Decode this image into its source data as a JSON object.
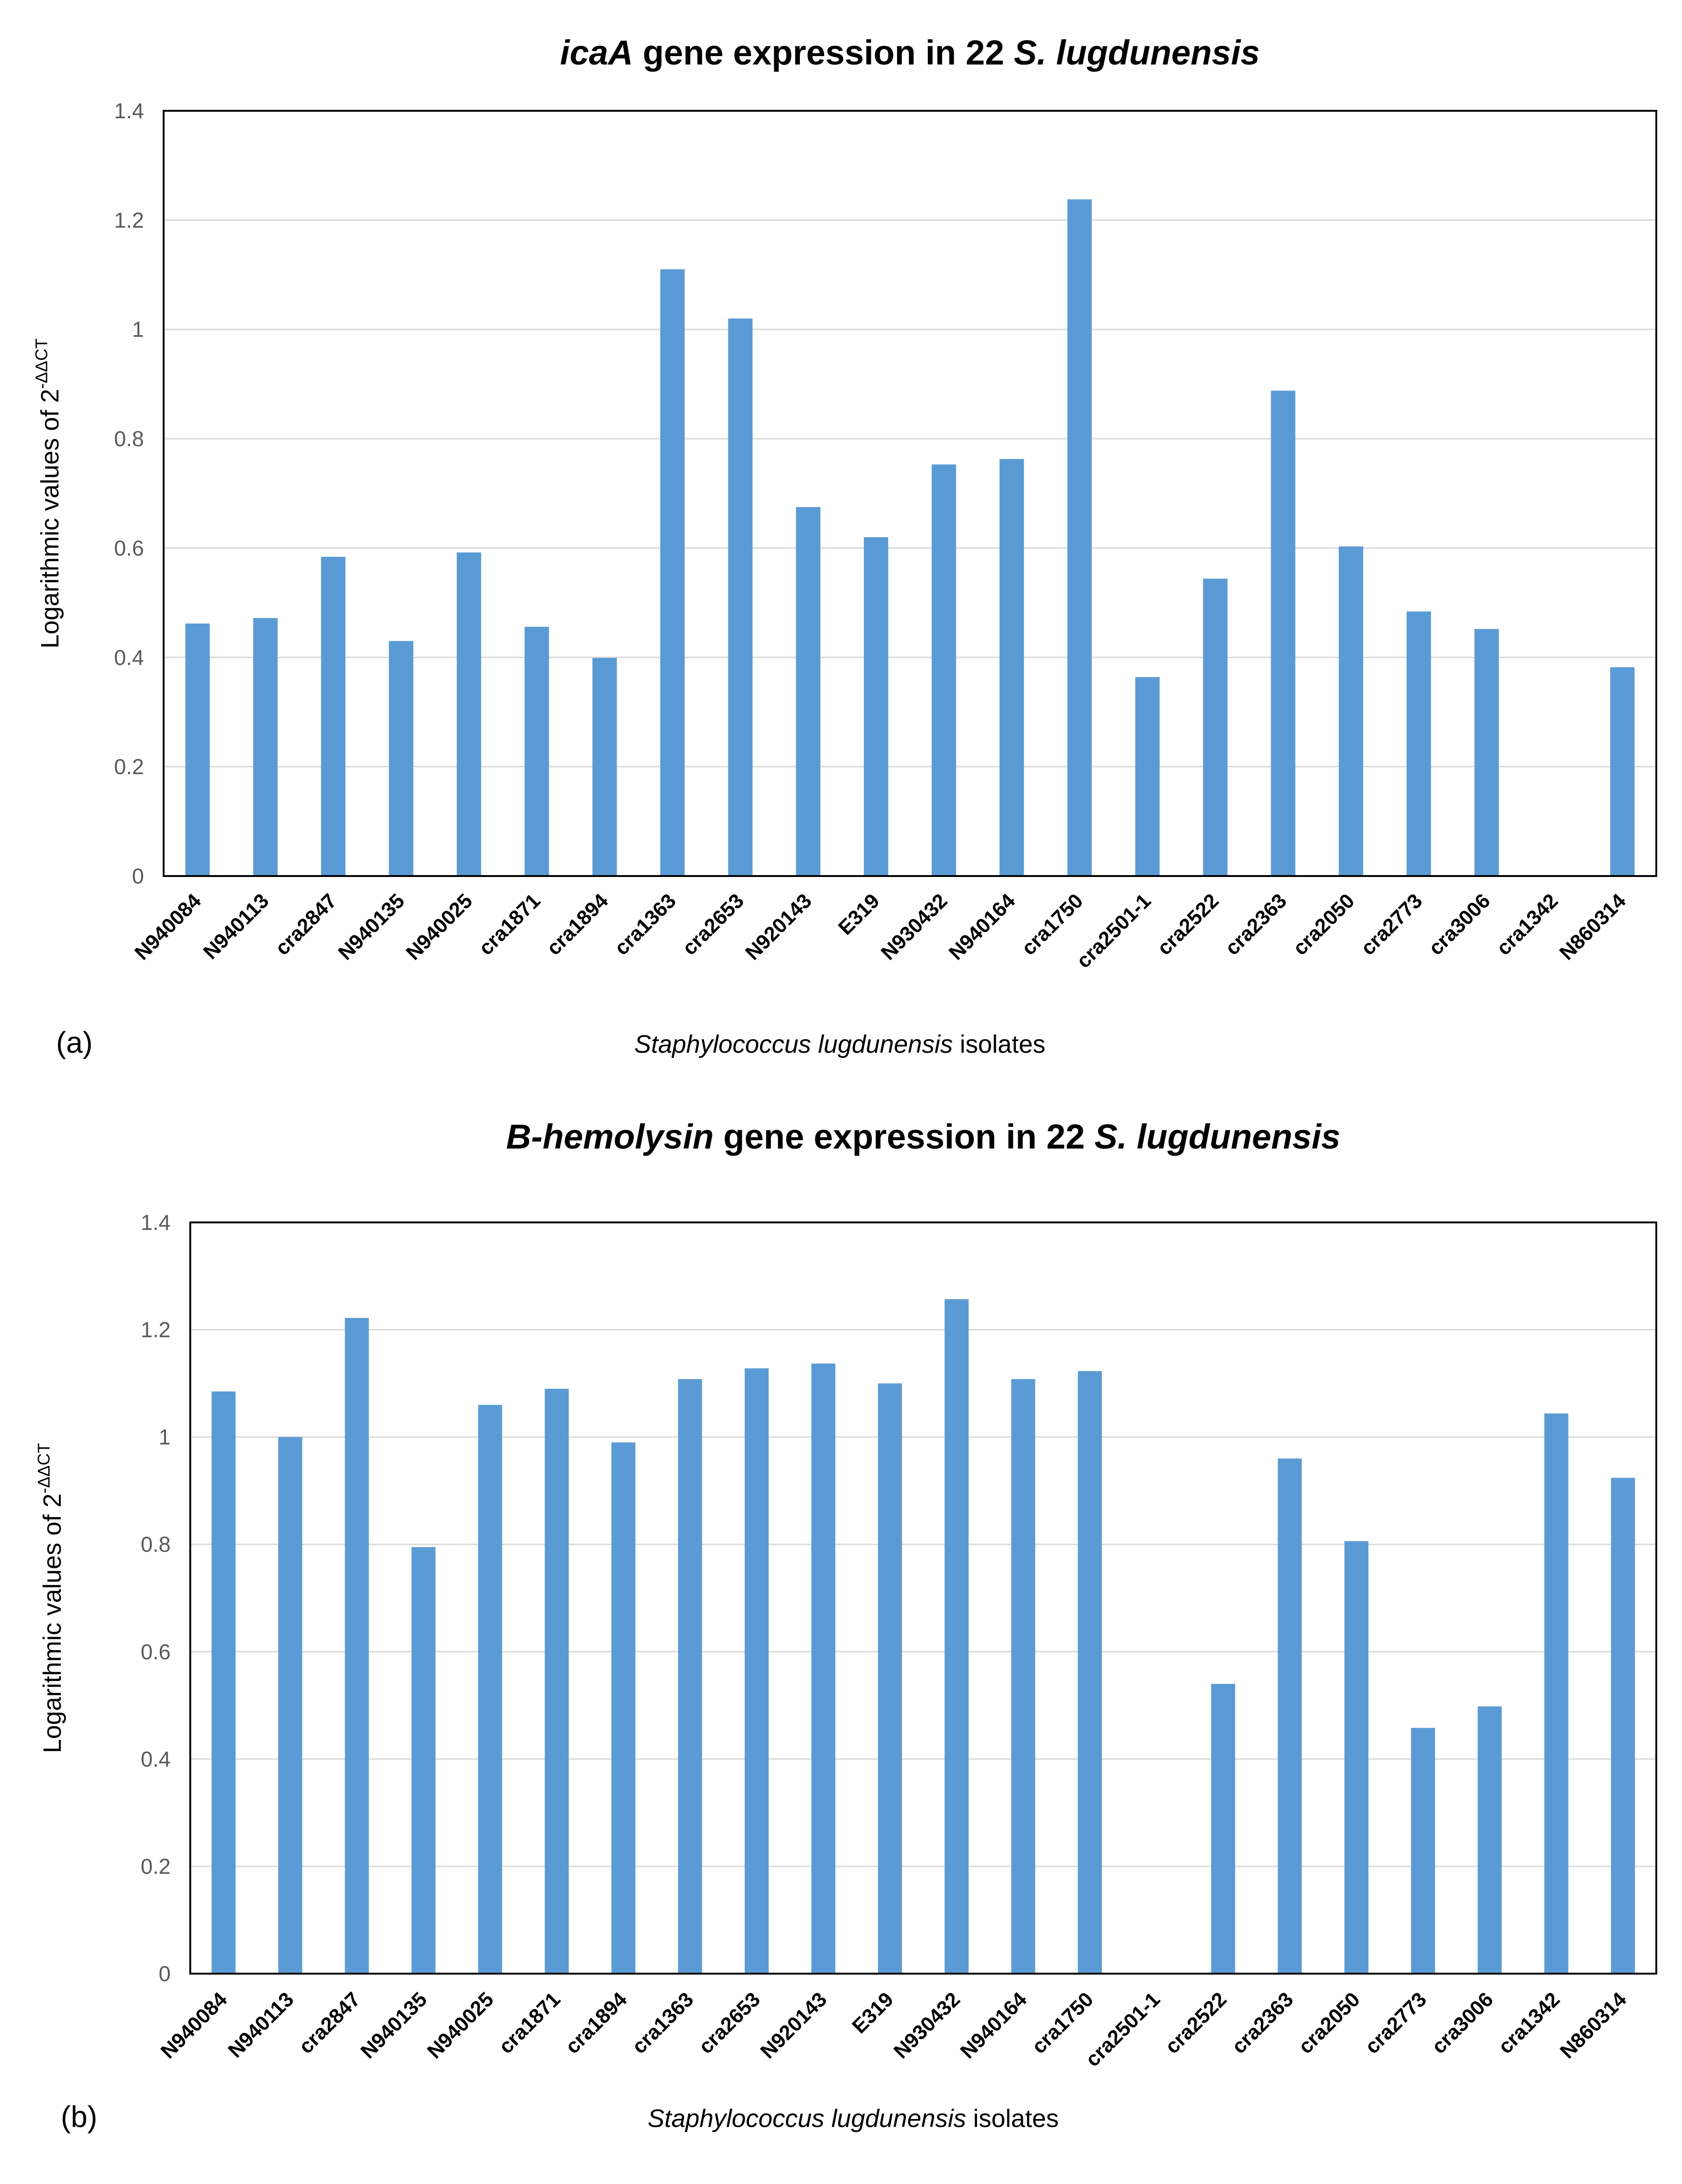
{
  "chart_data": [
    {
      "type": "bar",
      "panel_label": "(a)",
      "title_parts": [
        {
          "text": "icaA",
          "italic": true
        },
        {
          "text": " gene expression in 22 ",
          "italic": false
        },
        {
          "text": "S. lugdunensis",
          "italic": true
        }
      ],
      "xlabel_parts": [
        {
          "text": "Staphylococcus lugdunensis",
          "italic": true
        },
        {
          "text": " isolates",
          "italic": false
        }
      ],
      "ylabel": "Logarithmic values of 2",
      "ylabel_sup": "-ΔΔCT",
      "ylim": [
        0,
        1.4
      ],
      "yticks": [
        "0",
        "0.2",
        "0.4",
        "0.6",
        "0.8",
        "1",
        "1.2",
        "1.4"
      ],
      "grid": true,
      "color": "#5b9bd5",
      "categories": [
        "N940084",
        "N940113",
        "cra2847",
        "N940135",
        "N940025",
        "cra1871",
        "cra1894",
        "cra1363",
        "cra2653",
        "N920143",
        "E319",
        "N930432",
        "N940164",
        "cra1750",
        "cra2501-1",
        "cra2522",
        "cra2363",
        "cra2050",
        "cra2773",
        "cra3006",
        "cra1342",
        "N860314"
      ],
      "values": [
        0.462,
        0.472,
        0.584,
        0.43,
        0.592,
        0.456,
        0.399,
        1.11,
        1.02,
        0.675,
        0.62,
        0.753,
        0.763,
        1.238,
        0.364,
        0.544,
        0.888,
        0.603,
        0.484,
        0.452,
        0,
        0.382
      ]
    },
    {
      "type": "bar",
      "panel_label": "(b)",
      "title_parts": [
        {
          "text": "B-hemolysin",
          "italic": true
        },
        {
          "text": " gene expression in 22 ",
          "italic": false
        },
        {
          "text": "S. lugdunensis",
          "italic": true
        }
      ],
      "xlabel_parts": [
        {
          "text": "Staphylococcus lugdunensis",
          "italic": true
        },
        {
          "text": " isolates",
          "italic": false
        }
      ],
      "ylabel": "Logarithmic values of 2",
      "ylabel_sup": "-ΔΔCT",
      "ylim": [
        0,
        1.4
      ],
      "yticks": [
        "0",
        "0.2",
        "0.4",
        "0.6",
        "0.8",
        "1",
        "1.2",
        "1.4"
      ],
      "grid": true,
      "color": "#5b9bd5",
      "categories": [
        "N940084",
        "N940113",
        "cra2847",
        "N940135",
        "N940025",
        "cra1871",
        "cra1894",
        "cra1363",
        "cra2653",
        "N920143",
        "E319",
        "N930432",
        "N940164",
        "cra1750",
        "cra2501-1",
        "cra2522",
        "cra2363",
        "cra2050",
        "cra2773",
        "cra3006",
        "cra1342",
        "N860314"
      ],
      "values": [
        1.085,
        1.0,
        1.222,
        0.795,
        1.06,
        1.09,
        0.99,
        1.108,
        1.128,
        1.137,
        1.1,
        1.257,
        1.108,
        1.123,
        0,
        0.54,
        0.96,
        0.806,
        0.458,
        0.498,
        1.044,
        0.924
      ]
    }
  ]
}
